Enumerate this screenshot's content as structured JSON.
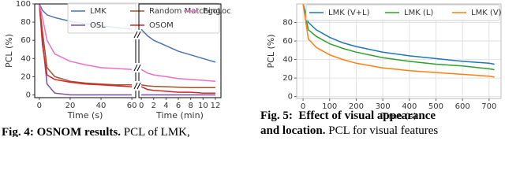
{
  "chart_data": [
    {
      "type": "line",
      "ylabel": "PCL (%)",
      "xlabel": "Time (s)",
      "xlim": [
        -3,
        62.5
      ],
      "ylim": [
        -3,
        100
      ],
      "xticks": [
        0,
        20,
        40,
        60
      ],
      "yticks": [
        0,
        20,
        40,
        60,
        80,
        100
      ],
      "legend": "upper right",
      "x": [
        0,
        2,
        5,
        10,
        20,
        30,
        40,
        50,
        60
      ],
      "series": [
        {
          "name": "LMK",
          "color": "#4a74b4",
          "values": [
            100,
            93,
            88,
            85,
            81,
            78,
            76,
            74,
            72
          ]
        },
        {
          "name": "OSL",
          "color": "#7b4ea3",
          "values": [
            100,
            60,
            12,
            2,
            0,
            0,
            0,
            0,
            0
          ]
        },
        {
          "name": "Random Matching",
          "color": "#a0522d",
          "values": [
            100,
            70,
            30,
            20,
            15,
            13,
            12,
            11,
            11
          ]
        },
        {
          "name": "OSOM",
          "color": "#d62728",
          "values": [
            100,
            55,
            22,
            17,
            14,
            12,
            11,
            10,
            9
          ]
        },
        {
          "name": "EgoLoc",
          "color": "#f06fc0",
          "values": [
            100,
            85,
            60,
            45,
            37,
            33,
            30,
            29,
            28
          ]
        }
      ]
    },
    {
      "type": "line",
      "xlabel": "Time (min)",
      "xlim": [
        -0.4,
        12.9
      ],
      "ylim": [
        -3,
        100
      ],
      "xticks": [
        0,
        2,
        4,
        6,
        8,
        10,
        12
      ],
      "x": [
        0,
        1,
        2,
        4,
        6,
        8,
        10,
        12
      ],
      "series": [
        {
          "color": "#4a74b4",
          "values": [
            72,
            65,
            60,
            54,
            48,
            44,
            40,
            36
          ]
        },
        {
          "color": "#7b4ea3",
          "values": [
            0,
            0,
            0,
            0,
            0,
            0,
            0,
            0
          ]
        },
        {
          "color": "#a0522d",
          "values": [
            11,
            10,
            9.5,
            9,
            8.5,
            8,
            8,
            8
          ]
        },
        {
          "color": "#d62728",
          "values": [
            9,
            6,
            5,
            4,
            3,
            3,
            2,
            2
          ]
        },
        {
          "color": "#f06fc0",
          "values": [
            28,
            24,
            22,
            20,
            18,
            17,
            16,
            15
          ]
        }
      ]
    },
    {
      "type": "line",
      "ylabel": "PCL (%)",
      "xlabel": "Time (s)",
      "xlim": [
        -24,
        745
      ],
      "ylim": [
        -2,
        100
      ],
      "xticks": [
        0,
        100,
        200,
        300,
        400,
        500,
        600,
        700
      ],
      "yticks": [
        0,
        20,
        40,
        60,
        80
      ],
      "grid": true,
      "legend": "upper right",
      "x": [
        0,
        20,
        50,
        100,
        150,
        200,
        300,
        400,
        500,
        600,
        700,
        720
      ],
      "series": [
        {
          "name": "LMK (V+L)",
          "color": "#1f77b4",
          "values": [
            100,
            80,
            72,
            64,
            58,
            54,
            48,
            44,
            41,
            38,
            36,
            35
          ]
        },
        {
          "name": "LMK (L)",
          "color": "#2ca02c",
          "values": [
            100,
            72,
            65,
            57,
            52,
            48,
            42,
            38,
            35,
            33,
            30,
            29
          ]
        },
        {
          "name": "LMK (V)",
          "color": "#ff7f0e",
          "values": [
            100,
            62,
            53,
            45,
            40,
            36,
            31,
            28,
            26,
            24,
            22,
            21
          ]
        }
      ]
    }
  ],
  "captions": {
    "left": {
      "label": "Fig. 4:",
      "title": "OSNOM results.",
      "text": "PCL of LMK,"
    },
    "right": {
      "line1": "Fig. 5:  Effect of visual appearance",
      "line2_bold": "and location.",
      "line2": "PCL for visual features"
    }
  }
}
